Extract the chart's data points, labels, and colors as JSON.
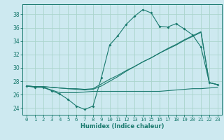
{
  "title": "",
  "xlabel": "Humidex (Indice chaleur)",
  "background_color": "#cde9f0",
  "grid_color": "#aad4cc",
  "line_color": "#1a7a6e",
  "xlim": [
    -0.5,
    23.5
  ],
  "ylim": [
    23,
    39.5
  ],
  "yticks": [
    24,
    26,
    28,
    30,
    32,
    34,
    36,
    38
  ],
  "xticks": [
    0,
    1,
    2,
    3,
    4,
    5,
    6,
    7,
    8,
    9,
    10,
    11,
    12,
    13,
    14,
    15,
    16,
    17,
    18,
    19,
    20,
    21,
    22,
    23
  ],
  "series1": [
    27.3,
    27.1,
    27.1,
    26.6,
    26.1,
    25.3,
    24.3,
    23.8,
    24.3,
    28.5,
    33.4,
    34.8,
    36.5,
    37.7,
    38.7,
    38.2,
    36.2,
    36.1,
    36.6,
    35.8,
    34.9,
    33.1,
    27.8,
    27.5
  ],
  "series2": [
    27.3,
    27.2,
    27.2,
    27.1,
    27.0,
    26.9,
    26.9,
    26.8,
    26.9,
    27.6,
    28.3,
    28.9,
    29.6,
    30.2,
    30.9,
    31.5,
    32.2,
    32.8,
    33.4,
    34.1,
    34.7,
    35.3,
    27.8,
    27.5
  ],
  "series3": [
    27.3,
    27.2,
    27.2,
    27.1,
    27.0,
    26.9,
    26.8,
    26.7,
    26.8,
    27.3,
    28.0,
    28.7,
    29.5,
    30.2,
    30.9,
    31.5,
    32.2,
    32.9,
    33.5,
    34.2,
    34.8,
    35.4,
    27.8,
    27.5
  ],
  "series4": [
    27.3,
    27.2,
    27.1,
    26.7,
    26.3,
    26.3,
    26.3,
    26.4,
    26.5,
    26.5,
    26.5,
    26.5,
    26.5,
    26.5,
    26.5,
    26.5,
    26.5,
    26.6,
    26.7,
    26.8,
    26.9,
    26.9,
    27.0,
    27.1
  ]
}
